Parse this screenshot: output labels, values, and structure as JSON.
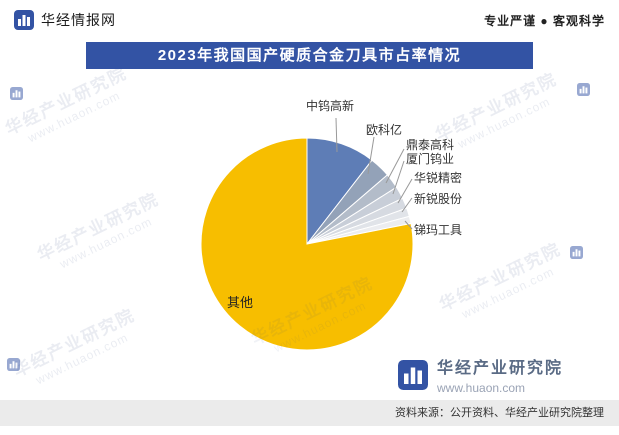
{
  "header": {
    "brand": "华经情报网",
    "tagline": "专业严谨 ● 客观科学"
  },
  "title": "2023年我国国产硬质合金刀具市占率情况",
  "chart_data": {
    "type": "pie",
    "title": "2023年我国国产硬质合金刀具市占率情况",
    "labels": [
      "中钨高新",
      "欧科亿",
      "鼎泰高科",
      "厦门钨业",
      "华锐精密",
      "新锐股份",
      "锑玛工具",
      "其他"
    ],
    "values": [
      10.5,
      3.2,
      2.3,
      1.9,
      1.6,
      1.3,
      1.1,
      78.1
    ],
    "unit": "%",
    "colors": [
      "#5E7DB6",
      "#93A2B8",
      "#B3BCC9",
      "#C8CED8",
      "#D6DAE1",
      "#E1E4E9",
      "#ECEDF0",
      "#F7BE00"
    ],
    "legend_position": "none",
    "label_style": "leader-lines"
  },
  "watermark": {
    "name": "华经产业研究院",
    "url": "www.huaon.com"
  },
  "brand_footer": {
    "name": "华经产业研究院",
    "url": "www.huaon.com"
  },
  "footer": {
    "source": "资料来源：公开资料、华经产业研究院整理"
  }
}
